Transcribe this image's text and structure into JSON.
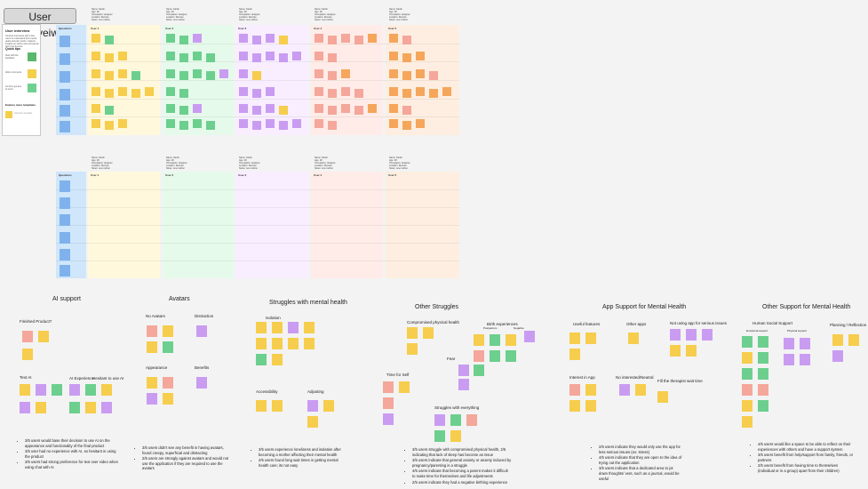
{
  "board_title": "User Interveiws",
  "guide": {
    "heading": "User interview",
    "intro": "Conduct interviews with a few users to understand their needs, goals and pain points. Capture insights on sticky notes and group them into themes.",
    "quick_tips": "Quick tips",
    "tip1": "Start with the feedback",
    "tip2": "Allow comments",
    "tip3": "Go from gut tree to icons",
    "explore": "Explore more templates",
    "template_card": "Interview template"
  },
  "rows1": [
    "Questions",
    "User 1",
    "User 2",
    "User 3",
    "User 4",
    "User 5"
  ],
  "rows2": [
    "Questions",
    "User 1",
    "User 2",
    "User 3",
    "User 4",
    "User 5"
  ],
  "meta_lines": [
    "Name: Sarah",
    "Age: 28",
    "Occupation: designer",
    "Location: Remote",
    "Notes: new mother"
  ],
  "colors": {
    "questions": "#cfe6fb",
    "user1": "#fff8dd",
    "user2": "#e6faeb",
    "user3": "#f8eeff",
    "user4": "#ffece8",
    "user5": "#fdeee1"
  },
  "clusters": {
    "ai_support": {
      "title": "AI support",
      "labels": [
        "Finished Product?",
        "Text AI",
        "AI Experience",
        "Hesitant to use AI"
      ],
      "bullets": [
        "3/5 users would base their decision to use AI on the appearance and functionality of the final product",
        "3/5 user had no experience with AI, so hesitant in using the product",
        "3/5 users had strong preference for text over video when using chat with AI"
      ]
    },
    "avatars": {
      "title": "Avatars",
      "labels": [
        "No Avatars",
        "Distraction",
        "Appearance",
        "Benefits"
      ],
      "bullets": [
        "3/5 users didn't see any benefit in having avatars, found creepy, superficial and distracting",
        "2/5 users are strongly against avatars and would not use the application if they are required to use the avatars"
      ]
    },
    "struggles": {
      "title": "Struggles with mental health",
      "labels": [
        "Isolation",
        "Accessibility",
        "Adjusting"
      ],
      "bullets": [
        "3/5 users experience loneliness and isolation after becoming a mother affecting their mental health",
        "2/5 users found long wait times in getting mental health care; its not easy"
      ]
    },
    "other_struggles": {
      "title": "Other Struggles",
      "labels": [
        "Compromised physical health",
        "Birth experiences",
        "Postpartum",
        "Negative",
        "Time for Self",
        "Fear",
        "Struggles with everything"
      ],
      "bullets": [
        "3/5 users struggle with compromised physical health, 2/5 indicating that lack of sleep has become an issue",
        "3/5 users indicate that general anxiety or anxiety induced by pregnancy/parenting is a struggle",
        "4/5 users indicate that becoming a parent makes it difficult to make time for themselves and life adjustments",
        "2/5 users indicate they had a negative birthing experience"
      ]
    },
    "app_support": {
      "title": "App Support for Mental Health",
      "labels": [
        "Useful features",
        "Other apps",
        "Not using app for serious issues",
        "Interest in App",
        "No interested/Neutral",
        "Fill the therapist wait time"
      ],
      "bullets": [
        "2/5 users indicate they would only use the app for less serious issues (ex: stress)",
        "4/5 users indicate that they are open to the idea of trying out the application",
        "3/5 users indicate that a dedicated area to jot down thoughts/ vent, such as a journal, would be useful"
      ]
    },
    "other_support": {
      "title": "Other Support for Mental Health",
      "labels": [
        "Human Social Support",
        "Emotional support",
        "Physical support",
        "Planning / Reflection"
      ],
      "bullets": [
        "4/5 users would like a space to be able to reflect on their experiences with others and have a support system",
        "3/5 users benefit from help/support from family, friends, or partners",
        "2/5 users benefit from having time to themselves (individual or in a group) apart from their children)"
      ]
    }
  }
}
